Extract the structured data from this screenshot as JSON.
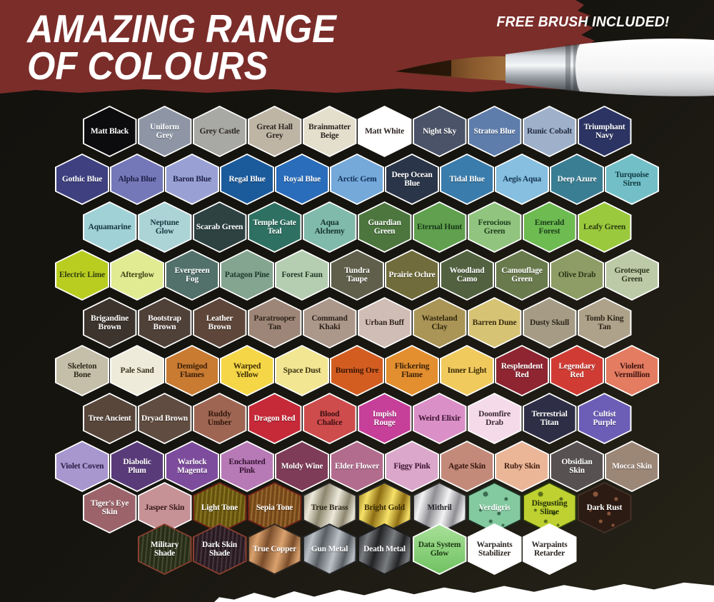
{
  "header": {
    "title_line1": "AMAZING RANGE",
    "title_line2": "OF COLOURS",
    "promo": "FREE BRUSH INCLUDED!",
    "banner_color": "#7b2d2a",
    "background_color": "#14120d"
  },
  "palette": {
    "default_border": "#ffffff",
    "rows": [
      [
        {
          "name": "Matt Black",
          "color": "#0c0c0e",
          "text": "#ffffff"
        },
        {
          "name": "Uniform Grey",
          "color": "#8e96a6",
          "text": "#ffffff"
        },
        {
          "name": "Grey Castle",
          "color": "#a8a8a4",
          "text": "#2e2723"
        },
        {
          "name": "Great Hall Grey",
          "color": "#beb5a5",
          "text": "#2e2723"
        },
        {
          "name": "Brainmatter Beige",
          "color": "#e4decd",
          "text": "#2e2723"
        },
        {
          "name": "Matt White",
          "color": "#ffffff",
          "text": "#2e2723"
        },
        {
          "name": "Night Sky",
          "color": "#4b5368",
          "text": "#ffffff"
        },
        {
          "name": "Stratos Blue",
          "color": "#5e7dab",
          "text": "#ffffff"
        },
        {
          "name": "Runic Cobalt",
          "color": "#9fb1ca",
          "text": "#232c42"
        },
        {
          "name": "Triumphant Navy",
          "color": "#2c3463",
          "text": "#ffffff"
        }
      ],
      [
        {
          "name": "Gothic Blue",
          "color": "#3e4080",
          "text": "#ffffff"
        },
        {
          "name": "Alpha Blue",
          "color": "#7478b8",
          "text": "#1e2148"
        },
        {
          "name": "Baron Blue",
          "color": "#99a1d4",
          "text": "#1e2148"
        },
        {
          "name": "Regal Blue",
          "color": "#1b5b9c",
          "text": "#ffffff"
        },
        {
          "name": "Royal Blue",
          "color": "#2a6dbb",
          "text": "#ffffff"
        },
        {
          "name": "Arctic Gem",
          "color": "#74a9da",
          "text": "#14315a"
        },
        {
          "name": "Deep Ocean Blue",
          "color": "#2b3549",
          "text": "#ffffff"
        },
        {
          "name": "Tidal Blue",
          "color": "#3a7cab",
          "text": "#ffffff"
        },
        {
          "name": "Aegis Aqua",
          "color": "#86bfdf",
          "text": "#153452"
        },
        {
          "name": "Deep Azure",
          "color": "#3a7e93",
          "text": "#ffffff"
        },
        {
          "name": "Turquoise Siren",
          "color": "#73bfc8",
          "text": "#123c42"
        }
      ],
      [
        {
          "name": "Aquamarine",
          "color": "#a0d1d7",
          "text": "#173a40"
        },
        {
          "name": "Neptune Glow",
          "color": "#acd4d7",
          "text": "#173a40"
        },
        {
          "name": "Scarab Green",
          "color": "#2e4242",
          "text": "#ffffff"
        },
        {
          "name": "Temple Gate Teal",
          "color": "#2e7061",
          "text": "#ffffff"
        },
        {
          "name": "Aqua Alchemy",
          "color": "#80baaa",
          "text": "#14332c"
        },
        {
          "name": "Guardian Green",
          "color": "#4c763e",
          "text": "#ffffff"
        },
        {
          "name": "Eternal Hunt",
          "color": "#60a04e",
          "text": "#183618"
        },
        {
          "name": "Ferocious Green",
          "color": "#91c57f",
          "text": "#1d3d1c"
        },
        {
          "name": "Emerald Forest",
          "color": "#6dbb51",
          "text": "#1d3d1c"
        },
        {
          "name": "Leafy Green",
          "color": "#9bc93d",
          "text": "#2a3d10"
        }
      ],
      [
        {
          "name": "Electric Lime",
          "color": "#b9cd21",
          "text": "#33400d"
        },
        {
          "name": "Afterglow",
          "color": "#e1eb92",
          "text": "#3c4416"
        },
        {
          "name": "Evergreen Fog",
          "color": "#51716a",
          "text": "#ffffff"
        },
        {
          "name": "Patagon Pine",
          "color": "#84a590",
          "text": "#1f3a2c"
        },
        {
          "name": "Forest Faun",
          "color": "#b5ceb1",
          "text": "#263a28"
        },
        {
          "name": "Tundra Taupe",
          "color": "#5f5f4b",
          "text": "#ffffff"
        },
        {
          "name": "Prairie Ochre",
          "color": "#716c3b",
          "text": "#ffffff"
        },
        {
          "name": "Woodland Camo",
          "color": "#526240",
          "text": "#ffffff"
        },
        {
          "name": "Camouflage Green",
          "color": "#697a4d",
          "text": "#ffffff"
        },
        {
          "name": "Olive Drab",
          "color": "#8d9d65",
          "text": "#2c3618"
        },
        {
          "name": "Grotesque Green",
          "color": "#bdcaa7",
          "text": "#2f3a22"
        }
      ],
      [
        {
          "name": "Brigandine Brown",
          "color": "#3d342d",
          "text": "#ffffff"
        },
        {
          "name": "Bootstrap Brown",
          "color": "#4f4038",
          "text": "#ffffff"
        },
        {
          "name": "Leather Brown",
          "color": "#5e473a",
          "text": "#ffffff"
        },
        {
          "name": "Paratrooper Tan",
          "color": "#9d8677",
          "text": "#2f241c"
        },
        {
          "name": "Command Khaki",
          "color": "#ac988b",
          "text": "#2f241c"
        },
        {
          "name": "Urban Buff",
          "color": "#d0bdb5",
          "text": "#33281f"
        },
        {
          "name": "Wasteland Clay",
          "color": "#aa9556",
          "text": "#33290f"
        },
        {
          "name": "Barren Dune",
          "color": "#d7c374",
          "text": "#3a2e10"
        },
        {
          "name": "Dusty Skull",
          "color": "#a69c86",
          "text": "#2f281c"
        },
        {
          "name": "Tomb King Tan",
          "color": "#afa28a",
          "text": "#2f281c"
        }
      ],
      [
        {
          "name": "Skeleton Bone",
          "color": "#c5bfa9",
          "text": "#2f2a1c"
        },
        {
          "name": "Pale Sand",
          "color": "#efebda",
          "text": "#3a3322"
        },
        {
          "name": "Demigod Flames",
          "color": "#c97b32",
          "text": "#3c2008"
        },
        {
          "name": "Warped Yellow",
          "color": "#f5d646",
          "text": "#402f08"
        },
        {
          "name": "Space Dust",
          "color": "#f2e693",
          "text": "#3e3510"
        },
        {
          "name": "Burning Ore",
          "color": "#d35d21",
          "text": "#3a1606"
        },
        {
          "name": "Flickering Flame",
          "color": "#e38f30",
          "text": "#3c2206"
        },
        {
          "name": "Inner Light",
          "color": "#f0ca5d",
          "text": "#3e2c0a"
        },
        {
          "name": "Resplendent Red",
          "color": "#8e2531",
          "text": "#ffffff"
        },
        {
          "name": "Legendary Red",
          "color": "#d03c34",
          "text": "#ffffff"
        },
        {
          "name": "Violent Vermillion",
          "color": "#e37c61",
          "text": "#3e1410"
        }
      ],
      [
        {
          "name": "Tree Ancient",
          "color": "#58463b",
          "text": "#ffffff"
        },
        {
          "name": "Dryad Brown",
          "color": "#604c40",
          "text": "#ffffff"
        },
        {
          "name": "Ruddy Umber",
          "color": "#9e6652",
          "text": "#33160e"
        },
        {
          "name": "Dragon Red",
          "color": "#c62938",
          "text": "#ffffff"
        },
        {
          "name": "Blood Chalice",
          "color": "#ce4c4c",
          "text": "#3c0f12"
        },
        {
          "name": "Impish Rouge",
          "color": "#c63f98",
          "text": "#ffffff"
        },
        {
          "name": "Weird Elixir",
          "color": "#db8fc7",
          "text": "#3c1432"
        },
        {
          "name": "Doomfire Drab",
          "color": "#f5dbea",
          "text": "#3c2a34"
        },
        {
          "name": "Terrestrial Titan",
          "color": "#2e2e46",
          "text": "#ffffff"
        },
        {
          "name": "Cultist Purple",
          "color": "#6c5eb7",
          "text": "#ffffff"
        }
      ],
      [
        {
          "name": "Violet Coven",
          "color": "#a896cf",
          "text": "#2a1c44"
        },
        {
          "name": "Diabolic Plum",
          "color": "#5a3b7a",
          "text": "#ffffff"
        },
        {
          "name": "Warlock Magenta",
          "color": "#7e4c9d",
          "text": "#ffffff"
        },
        {
          "name": "Enchanted Pink",
          "color": "#b77ab7",
          "text": "#371433"
        },
        {
          "name": "Moldy Wine",
          "color": "#7e3c58",
          "text": "#ffffff"
        },
        {
          "name": "Elder Flower",
          "color": "#b26c8e",
          "text": "#ffffff"
        },
        {
          "name": "Figgy Pink",
          "color": "#dba7cb",
          "text": "#3c1630"
        },
        {
          "name": "Agate Skin",
          "color": "#c38a7a",
          "text": "#36160e"
        },
        {
          "name": "Ruby Skin",
          "color": "#ebb698",
          "text": "#3c1c10"
        },
        {
          "name": "Obsidian Skin",
          "color": "#585152",
          "text": "#ffffff"
        },
        {
          "name": "Mocca Skin",
          "color": "#9c8676",
          "text": "#ffffff"
        }
      ],
      [
        {
          "name": "Tiger's Eye Skin",
          "color": "#9c646a",
          "text": "#ffffff"
        },
        {
          "name": "Jasper Skin",
          "color": "#c69296",
          "text": "#3a1a1c"
        },
        {
          "name": "Light Tone",
          "color": "#7d660f",
          "text": "#ffffff",
          "finish": "wash",
          "border": "#6e2017"
        },
        {
          "name": "Sepia Tone",
          "color": "#90591d",
          "text": "#ffffff",
          "finish": "wash",
          "border": "#6e2017"
        },
        {
          "name": "True Brass",
          "color": "#8d866e",
          "color2": "#ece9da",
          "text": "#2f2a1c",
          "finish": "metal",
          "border": "#2b2b2b"
        },
        {
          "name": "Bright Gold",
          "color": "#8d6d12",
          "color2": "#f7e269",
          "text": "#3a2c06",
          "finish": "metal",
          "border": "#2b2b2b"
        },
        {
          "name": "Mithril",
          "color": "#8f8f93",
          "color2": "#f3f3f5",
          "text": "#26262a",
          "finish": "metal",
          "border": "#2b2b2b"
        },
        {
          "name": "Verdigris",
          "color": "#84caa1",
          "spot": "#3c6b50",
          "text": "#ffffff",
          "finish": "splatter",
          "border": "#1e3226"
        },
        {
          "name": "Disgusting Slime",
          "color": "#bed130",
          "spot": "#5c6e1a",
          "text": "#233008",
          "finish": "splatter",
          "border": "#2a3a10"
        },
        {
          "name": "Dark Rust",
          "color": "#2c1b13",
          "spot": "#8a563c",
          "text": "#ffffff",
          "finish": "splatter",
          "border": "#433228"
        }
      ],
      [
        {
          "name": "Military Shade",
          "color": "#31371d",
          "text": "#ffffff",
          "finish": "wash",
          "border": "#8d4030"
        },
        {
          "name": "Dark Skin Shade",
          "color": "#322028",
          "text": "#ffffff",
          "finish": "wash",
          "border": "#8d4030"
        },
        {
          "name": "True Copper",
          "color": "#7a4d2b",
          "color2": "#dba26e",
          "text": "#ffffff",
          "finish": "metal",
          "border": "#2e2620"
        },
        {
          "name": "Gun Metal",
          "color": "#585d62",
          "color2": "#bac0c5",
          "text": "#ffffff",
          "finish": "metal",
          "border": "#26282a"
        },
        {
          "name": "Death Metal",
          "color": "#222325",
          "color2": "#7a7d80",
          "text": "#ffffff",
          "finish": "metal",
          "border": "#1c1c1e"
        },
        {
          "name": "Data System Glow",
          "color": "#70c261",
          "color2": "#a8e098",
          "text": "#1c3a14",
          "finish": "glow"
        },
        {
          "name": "Warpaints Stabilizer",
          "color": "#ffffff",
          "text": "#2e2723"
        },
        {
          "name": "Warpaints Retarder",
          "color": "#ffffff",
          "text": "#2e2723"
        }
      ]
    ]
  }
}
